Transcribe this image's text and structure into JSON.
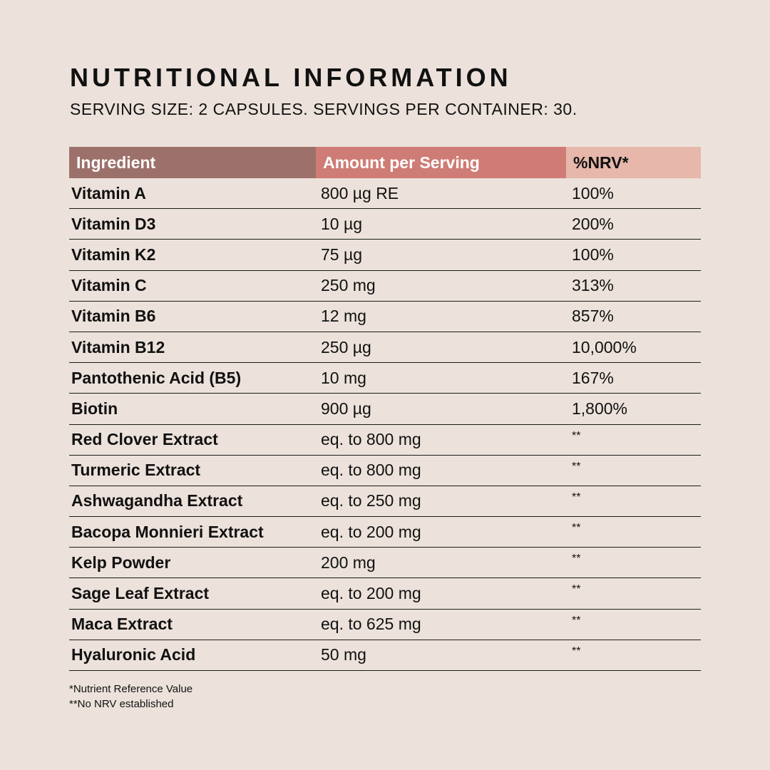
{
  "title": "NUTRITIONAL INFORMATION",
  "subtitle": "SERVING SIZE: 2 CAPSULES. SERVINGS PER CONTAINER: 30.",
  "table": {
    "headers": [
      "Ingredient",
      "Amount per Serving",
      "%NRV*"
    ],
    "rows": [
      [
        "Vitamin A",
        "800 µg RE",
        "100%"
      ],
      [
        "Vitamin D3",
        "10 µg",
        "200%"
      ],
      [
        "Vitamin K2",
        "75 µg",
        "100%"
      ],
      [
        "Vitamin C",
        "250 mg",
        "313%"
      ],
      [
        "Vitamin B6",
        "12 mg",
        "857%"
      ],
      [
        "Vitamin B12",
        "250 µg",
        "10,000%"
      ],
      [
        "Pantothenic Acid (B5)",
        "10 mg",
        "167%"
      ],
      [
        "Biotin",
        "900 µg",
        "1,800%"
      ],
      [
        "Red Clover Extract",
        "eq. to 800 mg",
        "**"
      ],
      [
        "Turmeric Extract",
        "eq. to 800 mg",
        "**"
      ],
      [
        "Ashwagandha Extract",
        "eq. to 250 mg",
        "**"
      ],
      [
        "Bacopa Monnieri Extract",
        "eq. to 200 mg",
        "**"
      ],
      [
        "Kelp Powder",
        "200 mg",
        "**"
      ],
      [
        "Sage Leaf Extract",
        "eq. to 200 mg",
        "**"
      ],
      [
        "Maca Extract",
        "eq. to 625 mg",
        "**"
      ],
      [
        "Hyaluronic Acid",
        "50 mg",
        "**"
      ]
    ]
  },
  "footnotes": [
    "*Nutrient Reference Value",
    "**No NRV established"
  ],
  "colors": {
    "background": "#ece2db",
    "header_ingredient": "#9d716b",
    "header_amount": "#ce7c75",
    "header_nrv": "#e6b7aa"
  }
}
